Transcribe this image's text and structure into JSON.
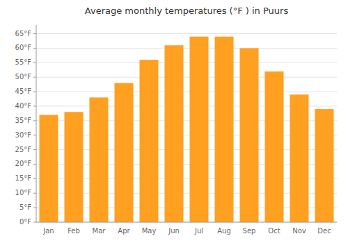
{
  "chart_data": {
    "type": "bar",
    "title": "Average monthly temperatures (°F ) in Puurs",
    "categories": [
      "Jan",
      "Feb",
      "Mar",
      "Apr",
      "May",
      "Jun",
      "Jul",
      "Aug",
      "Sep",
      "Oct",
      "Nov",
      "Dec"
    ],
    "values": [
      37,
      38,
      43,
      48,
      56,
      61,
      64,
      64,
      60,
      52,
      44,
      39
    ],
    "color": "#FFA020",
    "ylim": [
      0,
      68
    ],
    "yticks": [
      {
        "value": 0,
        "label": "0°F"
      },
      {
        "value": 5,
        "label": "5°F"
      },
      {
        "value": 10,
        "label": "10°F"
      },
      {
        "value": 15,
        "label": "15°F"
      },
      {
        "value": 20,
        "label": "20°F"
      },
      {
        "value": 25,
        "label": "25°F"
      },
      {
        "value": 30,
        "label": "30°F"
      },
      {
        "value": 35,
        "label": "35°F"
      },
      {
        "value": 40,
        "label": "40°F"
      },
      {
        "value": 45,
        "label": "45°F"
      },
      {
        "value": 50,
        "label": "50°F"
      },
      {
        "value": 55,
        "label": "55°F"
      },
      {
        "value": 60,
        "label": "60°F"
      },
      {
        "value": 65,
        "label": "65°F"
      }
    ],
    "grid": true
  }
}
